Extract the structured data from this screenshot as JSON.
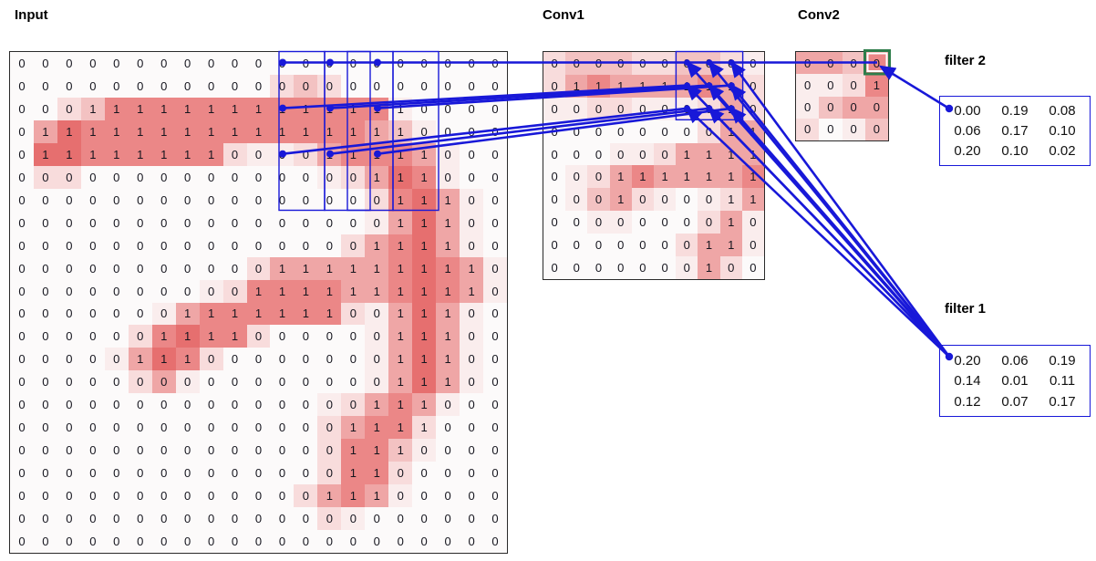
{
  "titles": {
    "input": "Input",
    "conv1": "Conv1",
    "conv2": "Conv2"
  },
  "grids": {
    "input": {
      "values": [
        "000000000000000000000",
        "000000000000000000000",
        "000111111111111110000",
        "011111111111111110000",
        "011111111000011111000",
        "000000000000000111000",
        "000000000000000011100",
        "000000000000000011100",
        "000000000000000111100",
        "000000000001111111110",
        "000000000011111111110",
        "000000011111110011100",
        "000000111100000011100",
        "000001110000000011100",
        "000000000000000011100",
        "000000000000000111000",
        "000000000000001111000",
        "000000000000001110000",
        "000000000000001100000",
        "000000000000011100000",
        "000000000000000000000",
        "000000000000000000000"
      ],
      "shades": [
        "000000000000000000000",
        "000000000002320000000",
        "002355555555555510000",
        "046555555555555431000",
        "066555555211245554100",
        "022000000000012465100",
        "000000000000000256410",
        "000000000000000146410",
        "000000000000002456410",
        "000000000024444456541",
        "000000001255554456541",
        "000000145555552146410",
        "000002565520000146410",
        "000014652000000146410",
        "000002410000000146410",
        "000000000000012454100",
        "000000000000024552000",
        "000000000000025531000",
        "000000000000025520000",
        "000000000000245410000",
        "000000000000021000000",
        "000000000000000000000"
      ]
    },
    "conv1": {
      "values": [
        "0000000000",
        "0111111110",
        "0000000010",
        "0000000011",
        "0000001111",
        "0001111111",
        "0001000011",
        "0000000010",
        "0000000110",
        "0000000100"
      ],
      "shades": [
        "2333223321",
        "2454444542",
        "1122111242",
        "0000000244",
        "0001124444",
        "0124544445",
        "0134210124",
        "0011000241",
        "0000002441",
        "0000001420"
      ]
    },
    "conv2": {
      "values": [
        "0000",
        "0001",
        "0000",
        "0000"
      ],
      "shades": [
        "4435",
        "1125",
        "1344",
        "2013"
      ]
    }
  },
  "filters": {
    "filter2": {
      "label": "filter 2",
      "rows": [
        [
          "0.00",
          "0.19",
          "0.08"
        ],
        [
          "0.06",
          "0.17",
          "0.10"
        ],
        [
          "0.20",
          "0.10",
          "0.02"
        ]
      ]
    },
    "filter1": {
      "label": "filter 1",
      "rows": [
        [
          "0.20",
          "0.06",
          "0.19"
        ],
        [
          "0.14",
          "0.01",
          "0.11"
        ],
        [
          "0.12",
          "0.07",
          "0.17"
        ]
      ]
    }
  },
  "colors": {
    "shade_levels": [
      "#fcfafa",
      "#faeded",
      "#f8dcdc",
      "#f3c2c2",
      "#efa6a6",
      "#eb8787",
      "#e66f6f"
    ],
    "line_blue": "#1818d8",
    "box_green": "#2e7d4b",
    "cell_text": "#15151e"
  }
}
